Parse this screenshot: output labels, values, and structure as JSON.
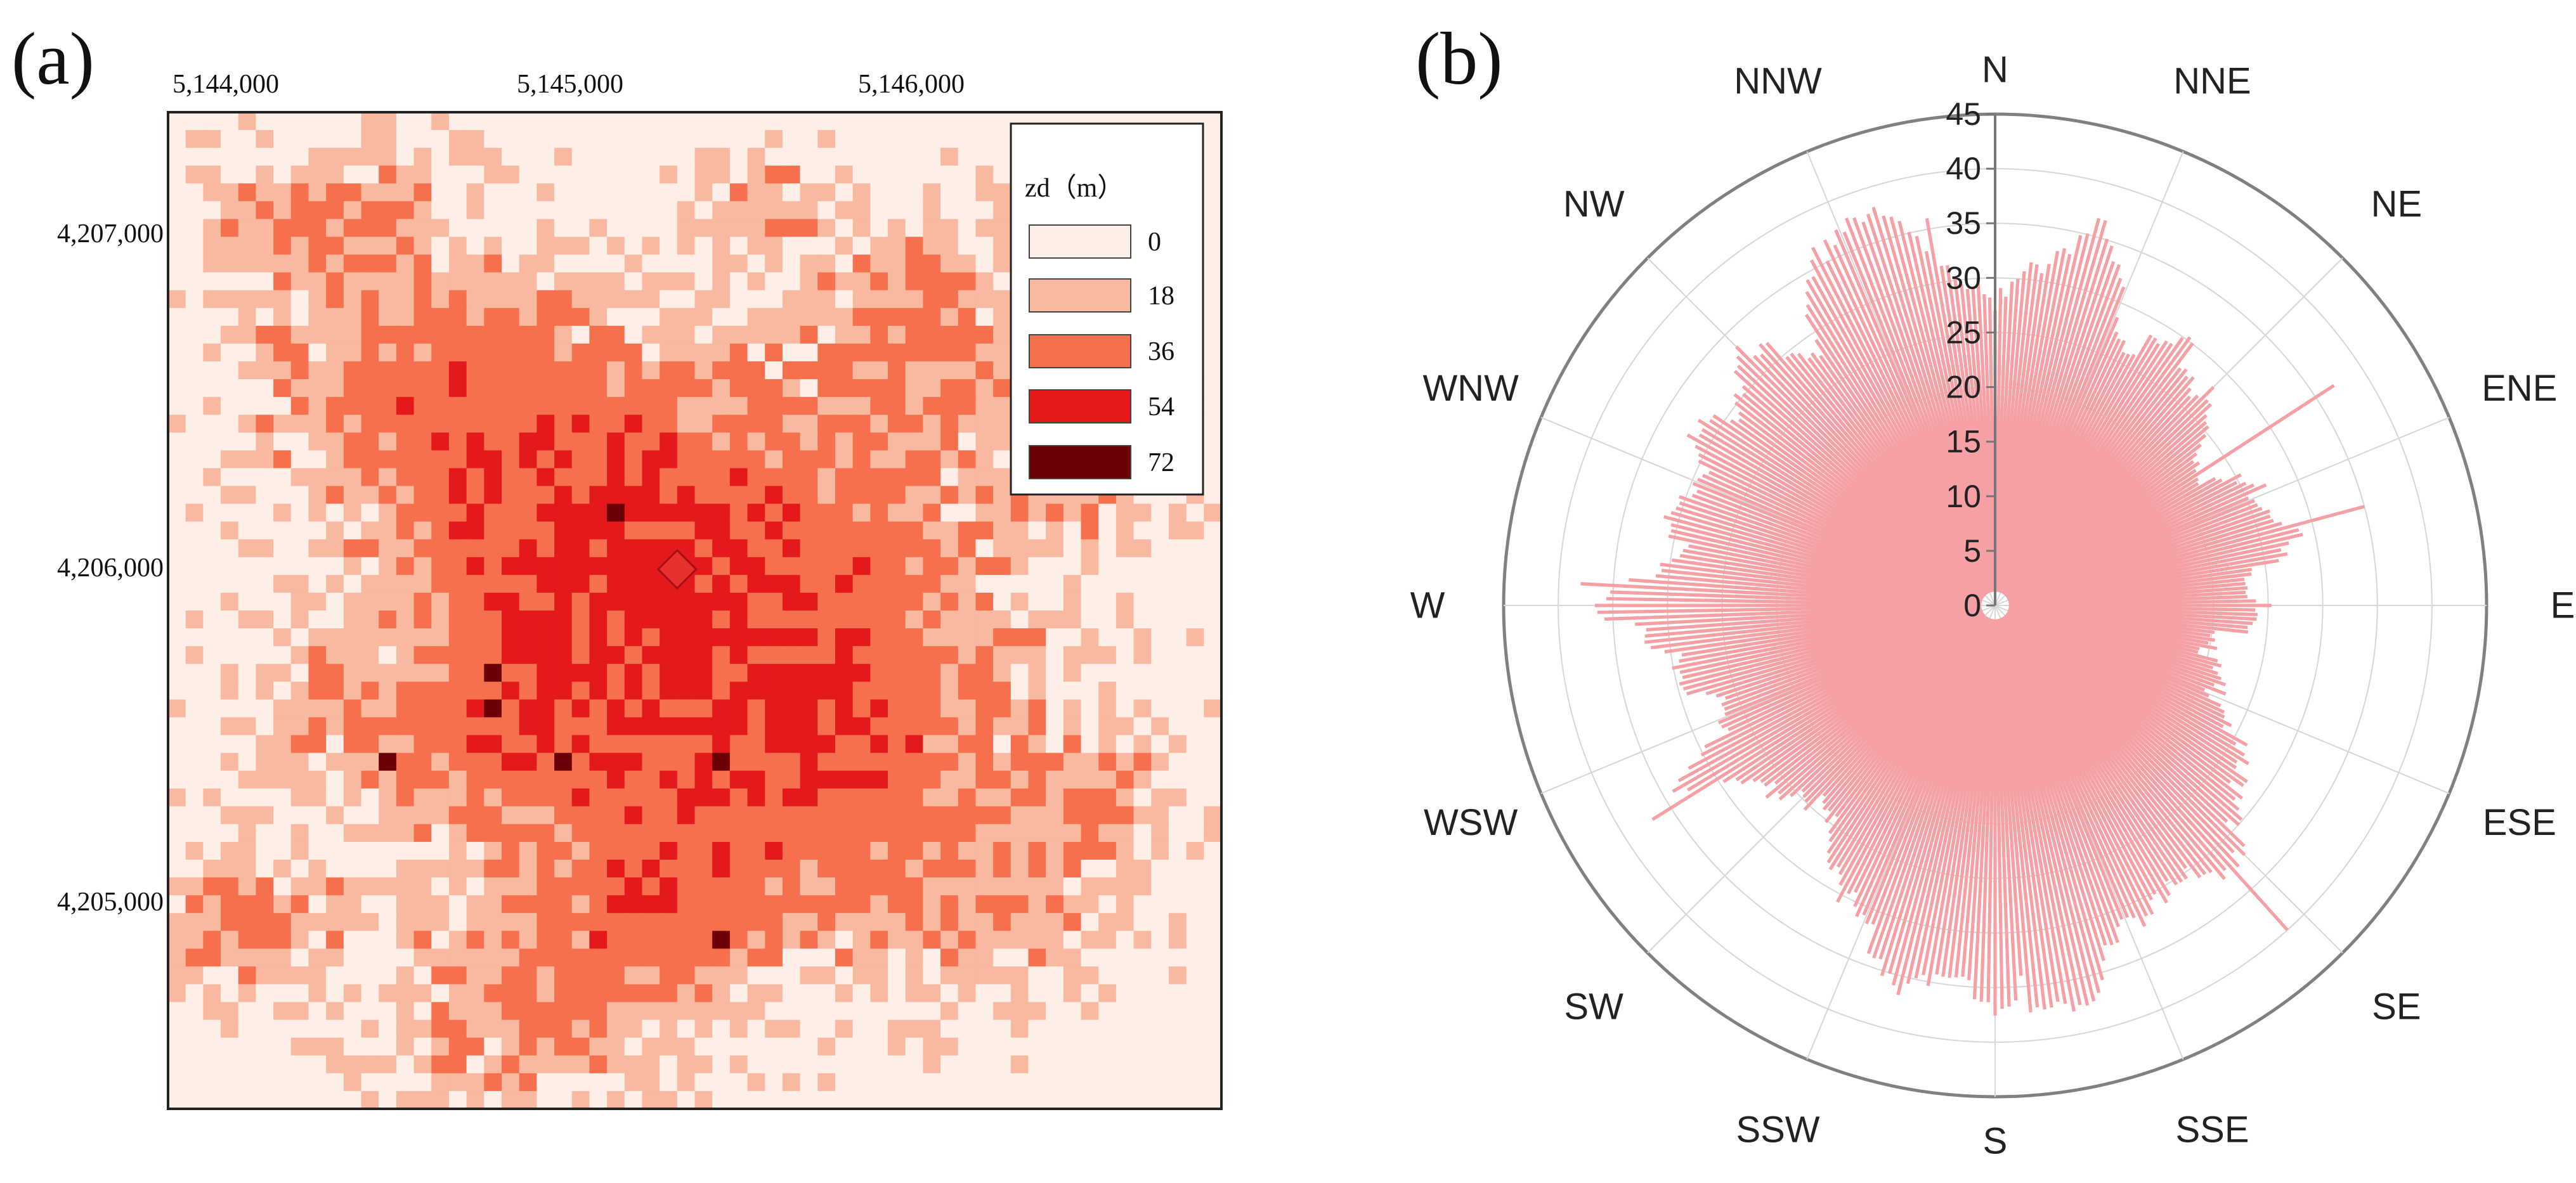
{
  "panels": [
    {
      "label": "(a)",
      "chart_data": {
        "type": "heatmap",
        "title": "",
        "x_tick_labels": [
          "5,144,000",
          "5,145,000",
          "5,146,000"
        ],
        "x_ticks": [
          5144000,
          5145000,
          5146000
        ],
        "y_tick_labels": [
          "4,207,000",
          "4,206,000",
          "4,205,000"
        ],
        "y_ticks": [
          4207000,
          4206000,
          4205000
        ],
        "xlim": [
          5144000,
          5147000
        ],
        "ylim": [
          4204400,
          4207300
        ],
        "grid_cells": [
          60,
          56
        ],
        "marker": {
          "shape": "diamond",
          "x": 5145450,
          "y": 4205970,
          "color": "#e8302e"
        },
        "legend": {
          "title": "zd（m）",
          "position": "top-right",
          "entries": [
            {
              "label": "0",
              "color": "#fdeee8"
            },
            {
              "label": "18",
              "color": "#f9b9a0"
            },
            {
              "label": "36",
              "color": "#f6704e"
            },
            {
              "label": "54",
              "color": "#e4191c"
            },
            {
              "label": "72",
              "color": "#6b0006"
            }
          ]
        }
      }
    },
    {
      "label": "(b)",
      "chart_data": {
        "type": "bar",
        "subtype": "polar",
        "title": "",
        "bar_color": "#f4a0a5",
        "r_range": [
          0,
          45
        ],
        "r_ticks": [
          0,
          5,
          10,
          15,
          20,
          25,
          30,
          35,
          40,
          45
        ],
        "r_tick_labels": [
          "0",
          "5",
          "10",
          "15",
          "20",
          "25",
          "30",
          "35",
          "40",
          "45"
        ],
        "direction_labels": [
          "N",
          "NNE",
          "NE",
          "ENE",
          "E",
          "ESE",
          "SE",
          "SSE",
          "S",
          "SSW",
          "SW",
          "WSW",
          "W",
          "WNW",
          "NW",
          "NNW"
        ],
        "direction_angles_deg": [
          0,
          22.5,
          45,
          67.5,
          90,
          112.5,
          135,
          157.5,
          180,
          202.5,
          225,
          247.5,
          270,
          292.5,
          315,
          337.5
        ],
        "profile_angles_deg": [
          0,
          5,
          10,
          15,
          20,
          25,
          30,
          35,
          40,
          45,
          50,
          55,
          60,
          65,
          70,
          75,
          80,
          85,
          90,
          95,
          100,
          105,
          110,
          115,
          120,
          125,
          130,
          135,
          140,
          145,
          150,
          155,
          160,
          165,
          170,
          175,
          180,
          185,
          190,
          195,
          200,
          205,
          210,
          215,
          220,
          225,
          230,
          235,
          240,
          245,
          250,
          255,
          260,
          265,
          270,
          275,
          280,
          285,
          290,
          295,
          300,
          305,
          310,
          315,
          320,
          325,
          330,
          335,
          340,
          345,
          350,
          355
        ],
        "profile_values": [
          27,
          30,
          33,
          36,
          32,
          28,
          27,
          29,
          28,
          27,
          25,
          23,
          23,
          26,
          27,
          29,
          26,
          24,
          24,
          22,
          21,
          20,
          21,
          24,
          25,
          27,
          30,
          31,
          32,
          31,
          30,
          31,
          33,
          36,
          37,
          38,
          36,
          34,
          36,
          35,
          33,
          31,
          28,
          26,
          25,
          24,
          26,
          29,
          33,
          28,
          27,
          28,
          30,
          33,
          36,
          32,
          30,
          30,
          30,
          30,
          31,
          30,
          31,
          32,
          30,
          29,
          33,
          37,
          38,
          36,
          33,
          30
        ],
        "spikes": [
          {
            "angle_deg": 57,
            "value": 37
          },
          {
            "angle_deg": 75,
            "value": 35
          },
          {
            "angle_deg": 138,
            "value": 40
          },
          {
            "angle_deg": 176,
            "value": 34
          },
          {
            "angle_deg": 238,
            "value": 37
          },
          {
            "angle_deg": 273,
            "value": 38
          },
          {
            "angle_deg": 339,
            "value": 38
          },
          {
            "angle_deg": 350,
            "value": 36
          }
        ]
      }
    }
  ]
}
